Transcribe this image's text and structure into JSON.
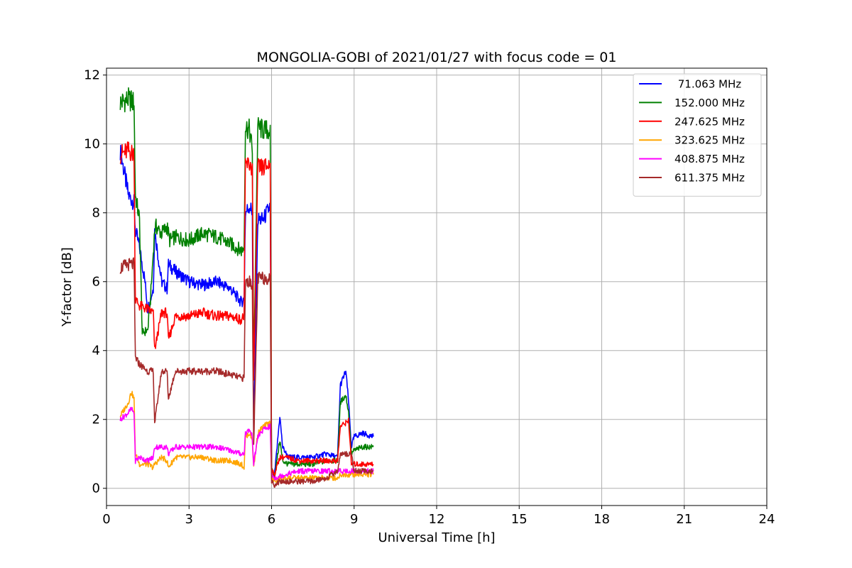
{
  "chart_data": {
    "type": "line",
    "title": "MONGOLIA-GOBI of 2021/01/27 with focus code = 01",
    "xlabel": "Universal Time [h]",
    "ylabel": "Y-factor [dB]",
    "xlim": [
      0,
      24
    ],
    "ylim": [
      -0.5,
      12.2
    ],
    "xticks": [
      0,
      3,
      6,
      9,
      12,
      15,
      18,
      21,
      24
    ],
    "yticks": [
      0,
      2,
      4,
      6,
      8,
      10,
      12
    ],
    "grid": true,
    "legend_position": "top-right",
    "series": [
      {
        "name": " 71.063 MHz",
        "color": "#0000ff",
        "x": [
          0.5,
          0.8,
          1.0,
          1.05,
          1.2,
          1.4,
          1.5,
          1.7,
          1.75,
          2.0,
          2.2,
          2.25,
          2.5,
          3.0,
          3.5,
          4.0,
          4.5,
          4.9,
          5.0,
          5.05,
          5.2,
          5.3,
          5.35,
          5.5,
          5.7,
          5.95,
          6.0,
          6.1,
          6.3,
          6.4,
          6.6,
          7.0,
          7.5,
          8.0,
          8.4,
          8.5,
          8.7,
          8.8,
          8.9,
          9.0,
          9.3,
          9.7
        ],
        "y": [
          9.8,
          8.5,
          8.3,
          7.5,
          7.0,
          6.0,
          5.2,
          5.8,
          7.5,
          6.0,
          5.8,
          6.5,
          6.3,
          6.0,
          5.9,
          6.0,
          5.8,
          5.4,
          5.5,
          8.0,
          8.2,
          8.0,
          1.5,
          7.8,
          7.8,
          8.2,
          0.5,
          0.3,
          2.1,
          1.2,
          0.9,
          0.9,
          0.9,
          1.0,
          0.9,
          3.0,
          3.4,
          2.5,
          1.2,
          1.5,
          1.6,
          1.5
        ]
      },
      {
        "name": "152.000 MHz",
        "color": "#008000",
        "x": [
          0.5,
          0.8,
          1.0,
          1.05,
          1.2,
          1.3,
          1.5,
          1.6,
          1.75,
          1.8,
          2.0,
          2.2,
          2.3,
          2.5,
          3.0,
          3.5,
          4.0,
          4.5,
          4.9,
          5.0,
          5.05,
          5.2,
          5.3,
          5.35,
          5.5,
          5.7,
          5.95,
          6.0,
          6.1,
          6.3,
          6.4,
          6.6,
          7.0,
          7.5,
          8.0,
          8.4,
          8.5,
          8.7,
          8.8,
          8.9,
          9.0,
          9.3,
          9.7
        ],
        "y": [
          11.2,
          11.3,
          11.2,
          8.5,
          7.8,
          4.5,
          4.6,
          5.5,
          7.5,
          7.6,
          7.4,
          7.6,
          7.2,
          7.3,
          7.2,
          7.4,
          7.3,
          7.1,
          6.9,
          7.0,
          10.5,
          10.4,
          9.8,
          3.5,
          10.5,
          10.4,
          10.4,
          0.6,
          0.3,
          1.4,
          0.8,
          0.7,
          0.7,
          0.7,
          0.8,
          0.8,
          2.5,
          2.7,
          2.2,
          1.0,
          1.1,
          1.2,
          1.2
        ]
      },
      {
        "name": "247.625 MHz",
        "color": "#ff0000",
        "x": [
          0.5,
          0.8,
          1.0,
          1.05,
          1.2,
          1.5,
          1.7,
          1.75,
          2.0,
          2.2,
          2.25,
          2.5,
          3.0,
          3.5,
          4.0,
          4.5,
          4.9,
          5.0,
          5.05,
          5.2,
          5.3,
          5.35,
          5.5,
          5.7,
          5.95,
          6.0,
          6.1,
          6.3,
          6.5,
          7.0,
          7.5,
          8.0,
          8.4,
          8.5,
          8.7,
          8.8,
          8.9,
          9.0,
          9.3,
          9.7
        ],
        "y": [
          9.7,
          9.8,
          9.7,
          5.5,
          5.3,
          5.2,
          5.1,
          4.0,
          5.1,
          5.1,
          4.3,
          5.0,
          5.0,
          5.1,
          5.0,
          5.0,
          4.9,
          5.0,
          9.4,
          9.4,
          9.3,
          3.0,
          9.3,
          9.3,
          9.4,
          0.5,
          0.4,
          0.9,
          0.9,
          0.8,
          0.8,
          0.8,
          0.8,
          1.8,
          1.9,
          2.0,
          0.7,
          0.7,
          0.7,
          0.7
        ]
      },
      {
        "name": "323.625 MHz",
        "color": "#ffa500",
        "x": [
          0.5,
          0.8,
          0.9,
          1.0,
          1.05,
          1.2,
          1.5,
          1.7,
          1.75,
          2.0,
          2.2,
          2.25,
          2.5,
          3.0,
          3.5,
          4.0,
          4.5,
          4.9,
          5.0,
          5.05,
          5.2,
          5.3,
          5.35,
          5.5,
          5.7,
          5.95,
          6.0,
          6.1,
          6.5,
          7.0,
          7.5,
          8.0,
          8.4,
          8.5,
          8.9,
          9.0,
          9.3,
          9.7
        ],
        "y": [
          2.1,
          2.5,
          2.8,
          2.6,
          1.0,
          0.7,
          0.7,
          0.6,
          0.7,
          0.9,
          0.8,
          0.6,
          0.9,
          0.9,
          0.9,
          0.8,
          0.8,
          0.7,
          0.6,
          1.5,
          1.6,
          1.4,
          0.6,
          1.6,
          1.8,
          1.9,
          0.3,
          0.2,
          0.3,
          0.3,
          0.3,
          0.3,
          0.3,
          0.4,
          0.4,
          0.4,
          0.4,
          0.4
        ]
      },
      {
        "name": "408.875 MHz",
        "color": "#ff00ff",
        "x": [
          0.5,
          0.8,
          0.9,
          1.0,
          1.05,
          1.2,
          1.5,
          1.7,
          1.75,
          2.0,
          2.2,
          2.25,
          2.5,
          3.0,
          3.5,
          4.0,
          4.5,
          4.9,
          5.0,
          5.05,
          5.2,
          5.3,
          5.35,
          5.5,
          5.7,
          5.95,
          6.0,
          6.1,
          6.5,
          7.0,
          7.5,
          8.0,
          8.4,
          8.5,
          8.9,
          9.0,
          9.3,
          9.7
        ],
        "y": [
          2.0,
          2.2,
          2.3,
          2.2,
          0.8,
          0.9,
          0.8,
          0.9,
          1.2,
          1.2,
          1.2,
          1.0,
          1.2,
          1.2,
          1.2,
          1.2,
          1.1,
          1.0,
          1.0,
          1.6,
          1.7,
          1.5,
          0.7,
          1.5,
          1.7,
          1.8,
          0.4,
          0.3,
          0.4,
          0.5,
          0.5,
          0.5,
          0.5,
          0.5,
          0.5,
          0.5,
          0.5,
          0.5
        ]
      },
      {
        "name": "611.375 MHz",
        "color": "#a52a2a",
        "x": [
          0.5,
          0.8,
          1.0,
          1.05,
          1.2,
          1.5,
          1.7,
          1.75,
          2.0,
          2.2,
          2.25,
          2.5,
          3.0,
          3.5,
          4.0,
          4.5,
          4.9,
          5.0,
          5.05,
          5.2,
          5.3,
          5.35,
          5.5,
          5.7,
          5.95,
          6.0,
          6.1,
          6.3,
          6.5,
          7.0,
          7.5,
          8.0,
          8.4,
          8.5,
          8.7,
          8.9,
          9.0,
          9.3,
          9.7
        ],
        "y": [
          6.4,
          6.5,
          6.5,
          3.8,
          3.6,
          3.4,
          3.4,
          1.9,
          3.4,
          3.4,
          2.6,
          3.4,
          3.4,
          3.4,
          3.4,
          3.3,
          3.2,
          3.2,
          6.0,
          6.0,
          5.9,
          1.2,
          6.1,
          6.1,
          6.1,
          0.2,
          0.1,
          0.2,
          0.2,
          0.2,
          0.2,
          0.3,
          0.5,
          1.0,
          1.0,
          1.0,
          0.5,
          0.5,
          0.5
        ]
      }
    ]
  }
}
